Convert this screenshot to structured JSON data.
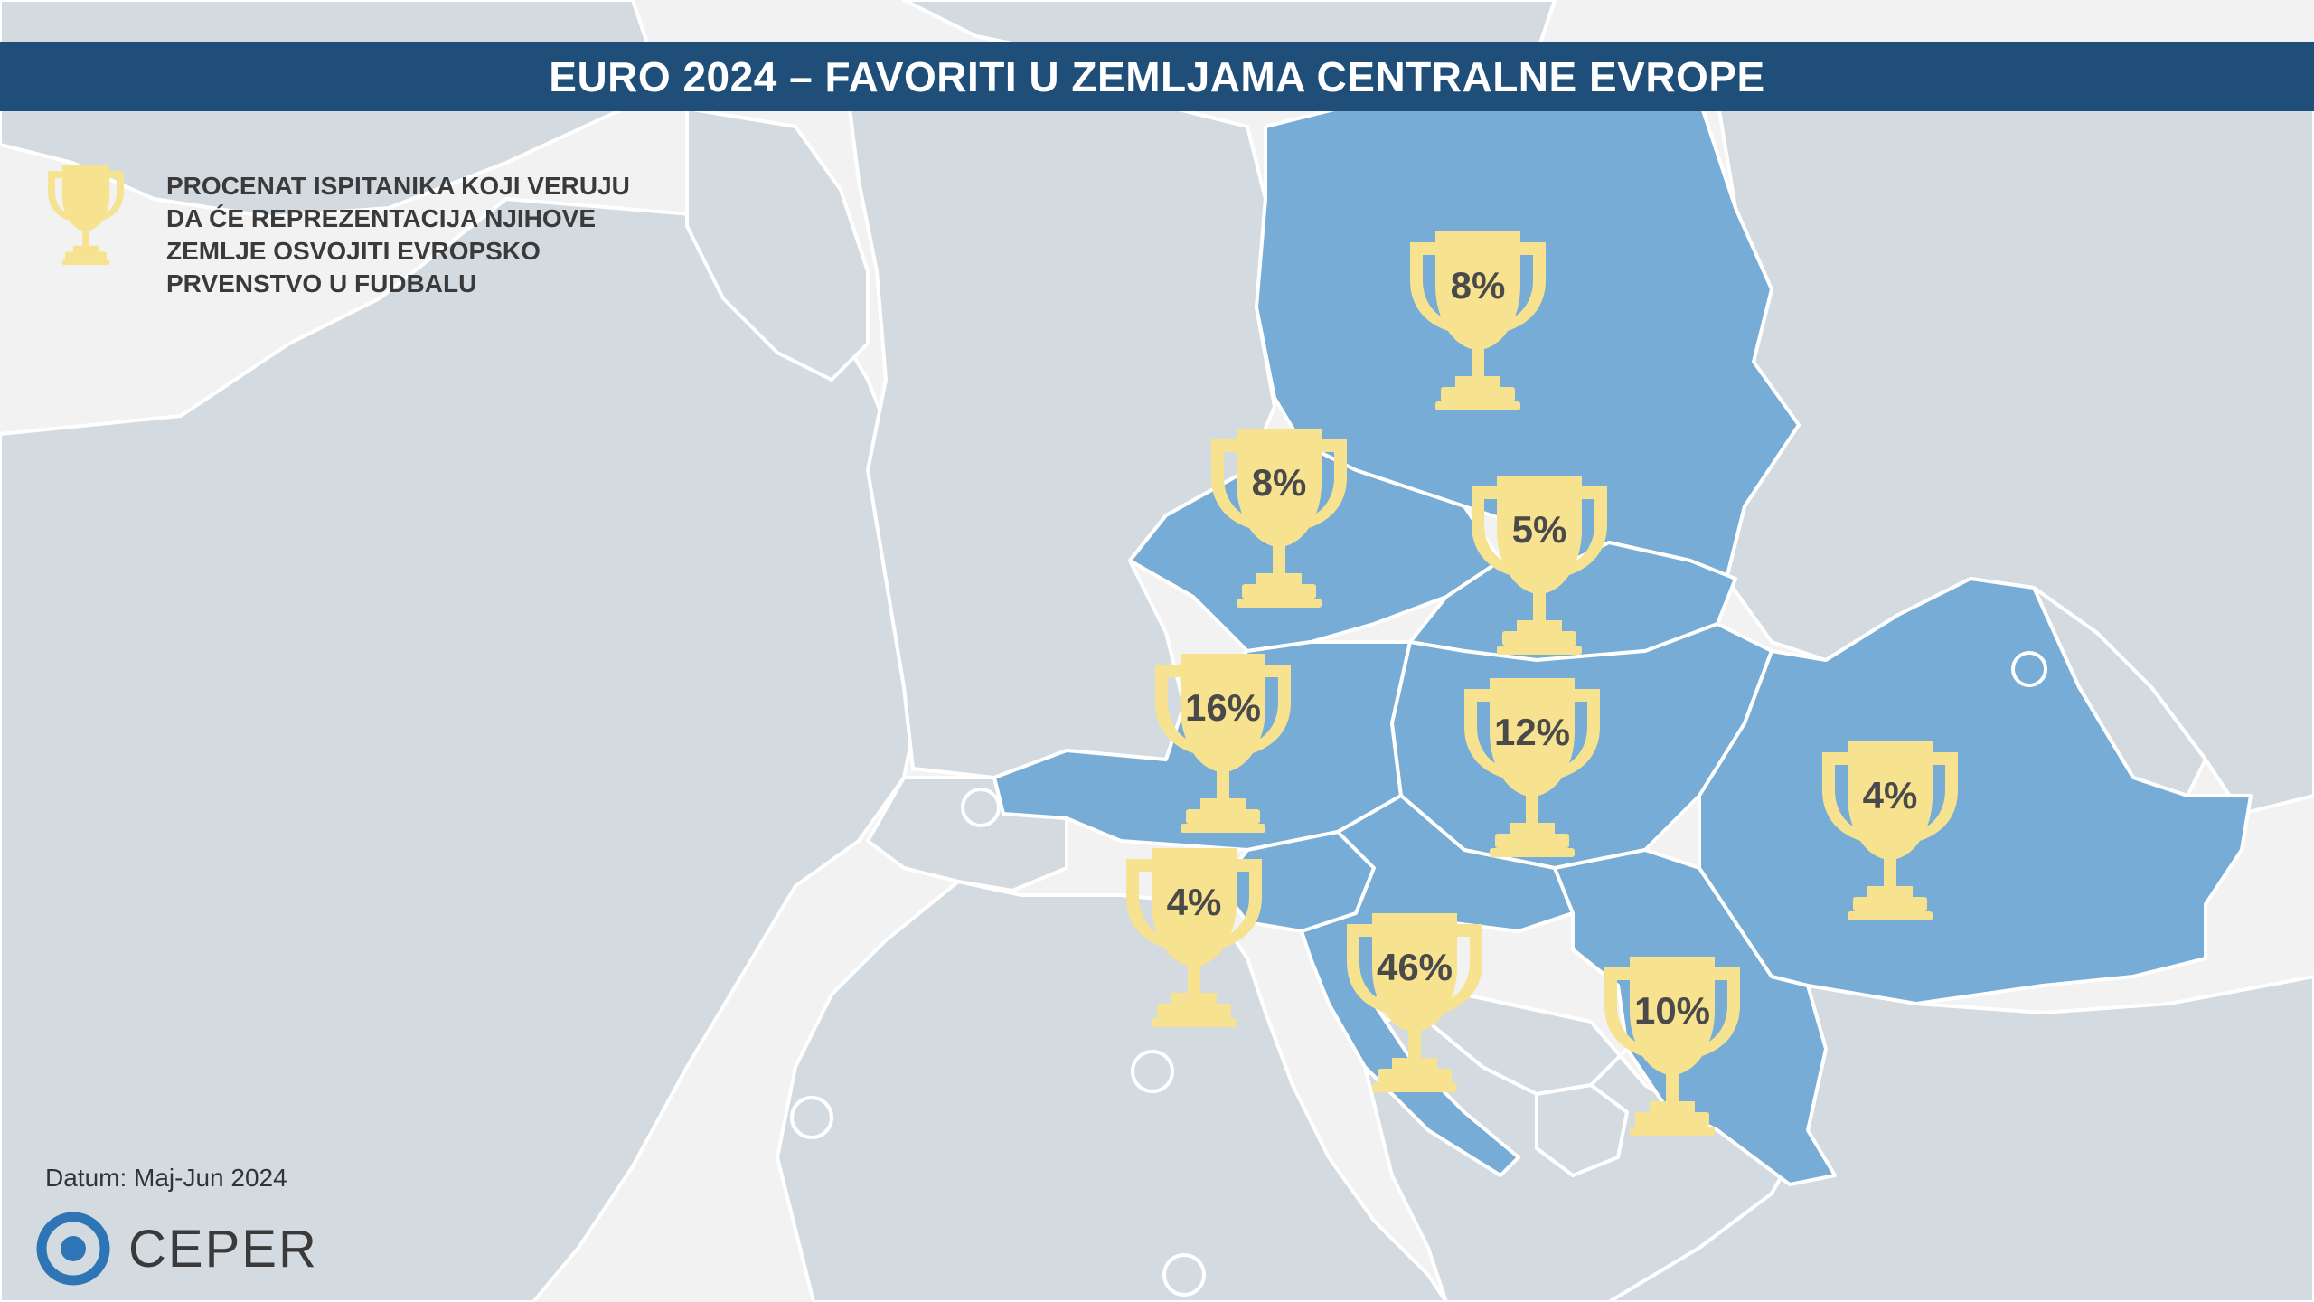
{
  "header": {
    "title": "EURO 2024 – FAVORITI U ZEMLJAMA CENTRALNE EVROPE"
  },
  "legend": {
    "icon": "trophy-icon",
    "lines": [
      "PROCENAT ISPITANIKA KOJI VERUJU",
      "DA ĆE REPREZENTACIJA NJIHOVE",
      "ZEMLJE OSVOJITI EVROPSKO",
      "PRVENSTVO U FUDBALU"
    ]
  },
  "markers": [
    {
      "country": "Poland",
      "value": "8%"
    },
    {
      "country": "Czechia",
      "value": "8%"
    },
    {
      "country": "Slovakia",
      "value": "5%"
    },
    {
      "country": "Austria",
      "value": "16%"
    },
    {
      "country": "Hungary",
      "value": "12%"
    },
    {
      "country": "Romania",
      "value": "4%"
    },
    {
      "country": "Slovenia",
      "value": "4%"
    },
    {
      "country": "Croatia",
      "value": "46%"
    },
    {
      "country": "Serbia",
      "value": "10%"
    }
  ],
  "footer": {
    "date": "Datum: Maj-Jun 2024",
    "logo_text": "CEPER"
  },
  "colors": {
    "title_bar": "#1f4e79",
    "highlighted_country": "#76acd5",
    "other_land": "#d4dbe0",
    "sea": "#f2f2f2",
    "trophy": "#f7e28f",
    "logo_ring": "#2e75b6"
  }
}
